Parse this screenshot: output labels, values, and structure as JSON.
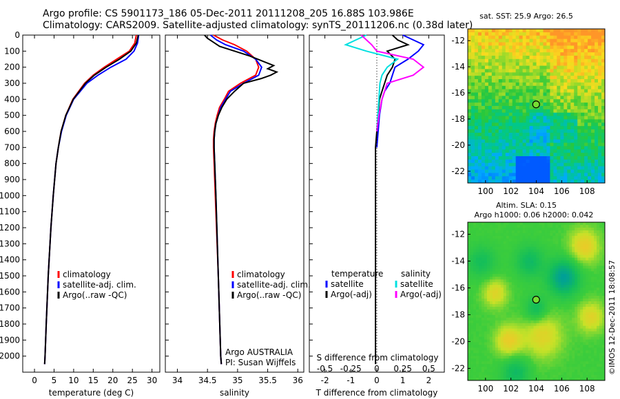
{
  "header": {
    "line1": "Argo profile: CS 5901173_186 05-Dec-2011 20111208_205 16.88S 103.986E",
    "line2": "Climatology: CARS2009. Satellite-adjusted climatology: synTS_20111206.nc (0.38d later)"
  },
  "colors": {
    "climatology": "#ff0000",
    "satellite": "#0000ff",
    "argo": "#000000",
    "sat_s": "#00e0e0",
    "argo_s": "#ff00ff"
  },
  "chart_data": [
    {
      "type": "line",
      "name": "temperature-profile",
      "xlabel": "temperature (deg C)",
      "ylabel": "",
      "xlim": [
        -3,
        32
      ],
      "ylim": [
        0,
        2100
      ],
      "xticks": [
        0,
        5,
        10,
        15,
        20,
        25,
        30
      ],
      "yticks": [
        0,
        100,
        200,
        300,
        400,
        500,
        600,
        700,
        800,
        900,
        1000,
        1100,
        1200,
        1300,
        1400,
        1500,
        1600,
        1700,
        1800,
        1900,
        2000
      ],
      "legend": [
        "climatology",
        "satellite-adj. clim.",
        "Argo(..raw -QC)"
      ],
      "series": [
        {
          "name": "climatology",
          "color": "#ff0000",
          "depth": [
            0,
            50,
            100,
            150,
            200,
            250,
            300,
            400,
            500,
            600,
            700,
            800,
            1000,
            1200,
            1500,
            1800,
            2000,
            2050
          ],
          "values": [
            26.0,
            25.6,
            24.2,
            21.0,
            17.8,
            15.0,
            12.8,
            9.8,
            8.0,
            6.8,
            6.1,
            5.5,
            4.8,
            4.2,
            3.5,
            3.0,
            2.7,
            2.6
          ]
        },
        {
          "name": "satellite-adj. clim.",
          "color": "#0000ff",
          "depth": [
            0,
            50,
            100,
            150,
            200,
            250,
            300,
            400,
            500,
            600,
            700,
            800,
            1000,
            1200,
            1500,
            1800,
            2000,
            2050
          ],
          "values": [
            26.6,
            26.3,
            25.4,
            23.4,
            19.5,
            16.2,
            13.4,
            10.0,
            8.1,
            6.9,
            6.1,
            5.5,
            4.8,
            4.2,
            3.5,
            3.0,
            2.7,
            2.6
          ]
        },
        {
          "name": "Argo(..raw -QC)",
          "color": "#000000",
          "depth": [
            0,
            50,
            100,
            150,
            200,
            250,
            300,
            400,
            500,
            600,
            700,
            800,
            1000,
            1200,
            1500,
            1800,
            2000,
            2050
          ],
          "values": [
            26.5,
            26.0,
            24.6,
            21.7,
            18.3,
            15.3,
            13.0,
            9.9,
            8.0,
            6.8,
            6.1,
            5.5,
            4.8,
            4.2,
            3.5,
            3.0,
            2.7,
            2.6
          ]
        }
      ]
    },
    {
      "type": "line",
      "name": "salinity-profile",
      "xlabel": "salinity",
      "xlim": [
        33.8,
        36.1
      ],
      "ylim": [
        0,
        2100
      ],
      "xticks": [
        34,
        34.5,
        35,
        35.5,
        36
      ],
      "legend": [
        "climatology",
        "satellite-adj. clim.",
        "Argo(..raw -QC)"
      ],
      "annotation": [
        "Argo AUSTRALIA",
        "PI: Susan Wijffels"
      ],
      "series": [
        {
          "name": "climatology",
          "color": "#ff0000",
          "depth": [
            0,
            30,
            60,
            100,
            150,
            200,
            250,
            300,
            350,
            400,
            450,
            500,
            550,
            600,
            650,
            700,
            800,
            1000,
            1500,
            2000,
            2050
          ],
          "values": [
            34.6,
            34.75,
            34.95,
            35.15,
            35.3,
            35.35,
            35.3,
            35.05,
            34.85,
            34.78,
            34.7,
            34.66,
            34.63,
            34.61,
            34.6,
            34.6,
            34.61,
            34.63,
            34.68,
            34.72,
            34.73
          ]
        },
        {
          "name": "satellite-adj. clim.",
          "color": "#0000ff",
          "depth": [
            0,
            30,
            60,
            100,
            150,
            200,
            250,
            300,
            350,
            400,
            450,
            500,
            550,
            600,
            650,
            700,
            800,
            1000,
            1500,
            2000,
            2050
          ],
          "values": [
            34.55,
            34.65,
            34.8,
            35.1,
            35.3,
            35.4,
            35.35,
            35.1,
            34.88,
            34.8,
            34.72,
            34.68,
            34.64,
            34.62,
            34.61,
            34.61,
            34.62,
            34.64,
            34.68,
            34.72,
            34.73
          ]
        },
        {
          "name": "Argo(..raw -QC)",
          "color": "#000000",
          "depth": [
            0,
            20,
            40,
            70,
            100,
            130,
            160,
            190,
            210,
            230,
            250,
            270,
            300,
            350,
            400,
            450,
            500,
            550,
            600,
            650,
            700,
            800,
            1000,
            1500,
            2000,
            2050
          ],
          "values": [
            34.45,
            34.5,
            34.58,
            34.7,
            34.95,
            35.2,
            35.4,
            35.6,
            35.5,
            35.65,
            35.55,
            35.4,
            35.1,
            34.95,
            34.82,
            34.74,
            34.68,
            34.64,
            34.62,
            34.61,
            34.61,
            34.62,
            34.64,
            34.68,
            34.72,
            34.73
          ]
        }
      ]
    },
    {
      "type": "line",
      "name": "difference-from-climatology",
      "xlabel": "T difference from climatology",
      "xlabel_top": "S difference from climatology",
      "xlim": [
        -2.6,
        2.6
      ],
      "ylim": [
        0,
        2100
      ],
      "xticks": [
        -2,
        -1,
        0,
        1,
        2
      ],
      "xticks_s": [
        "-0.5",
        "-0.25",
        "0",
        "0.25",
        "0.5"
      ],
      "legend_temperature": {
        "title": "temperature",
        "items": [
          "satellite",
          "Argo(-adj)"
        ]
      },
      "legend_salinity": {
        "title": "salinity",
        "items": [
          "satellite",
          "Argo(-adj)"
        ]
      },
      "series": [
        {
          "name": "T satellite",
          "color": "#0000ff",
          "depth": [
            0,
            30,
            60,
            100,
            150,
            200,
            250,
            300,
            350,
            400,
            500,
            600,
            700
          ],
          "values": [
            1.0,
            1.4,
            1.8,
            1.6,
            1.2,
            0.7,
            0.6,
            0.5,
            0.3,
            0.2,
            0.1,
            0.05,
            0.0
          ]
        },
        {
          "name": "T Argo",
          "color": "#000000",
          "depth": [
            0,
            30,
            60,
            100,
            150,
            200,
            250,
            300,
            350,
            400,
            500,
            600,
            700,
            1000,
            2050
          ],
          "values": [
            0.6,
            0.8,
            1.2,
            0.4,
            0.7,
            0.6,
            0.4,
            0.3,
            0.2,
            0.1,
            0.05,
            0.0,
            -0.05,
            -0.05,
            -0.05
          ]
        },
        {
          "name": "S satellite",
          "color": "#00e0e0",
          "depth": [
            0,
            30,
            60,
            100,
            150,
            200,
            250,
            300,
            400,
            500,
            600
          ],
          "values": [
            -0.1,
            -0.2,
            -0.3,
            -0.1,
            0.2,
            0.1,
            0.05,
            0.03,
            0.02,
            0.01,
            0.0
          ]
        },
        {
          "name": "S Argo",
          "color": "#ff00ff",
          "depth": [
            0,
            30,
            60,
            100,
            150,
            200,
            250,
            300,
            400,
            500,
            600
          ],
          "values": [
            -0.15,
            -0.1,
            -0.05,
            0.0,
            0.35,
            0.45,
            0.35,
            0.1,
            0.05,
            0.02,
            0.0
          ]
        }
      ]
    },
    {
      "type": "heatmap",
      "name": "sst-map",
      "title": "sat. SST: 25.9  Argo: 26.5",
      "xticks": [
        100,
        102,
        104,
        106,
        108
      ],
      "yticks": [
        -12,
        -14,
        -16,
        -18,
        -20,
        -22
      ],
      "xlim": [
        98.6,
        109.4
      ],
      "ylim": [
        -22.9,
        -11.1
      ],
      "marker": {
        "lon": 103.986,
        "lat": -16.88
      }
    },
    {
      "type": "heatmap",
      "name": "sla-map",
      "title_line1": "Altim. SLA: 0.15",
      "title_line2": "Argo h1000: 0.06 h2000: 0.042",
      "xticks": [
        100,
        102,
        104,
        106,
        108
      ],
      "yticks": [
        -12,
        -14,
        -16,
        -18,
        -20,
        -22
      ],
      "xlim": [
        98.6,
        109.4
      ],
      "ylim": [
        -22.9,
        -11.1
      ],
      "marker": {
        "lon": 103.986,
        "lat": -16.88
      }
    }
  ],
  "credit": "©IMOS 12-Dec-2011 18:08:57"
}
